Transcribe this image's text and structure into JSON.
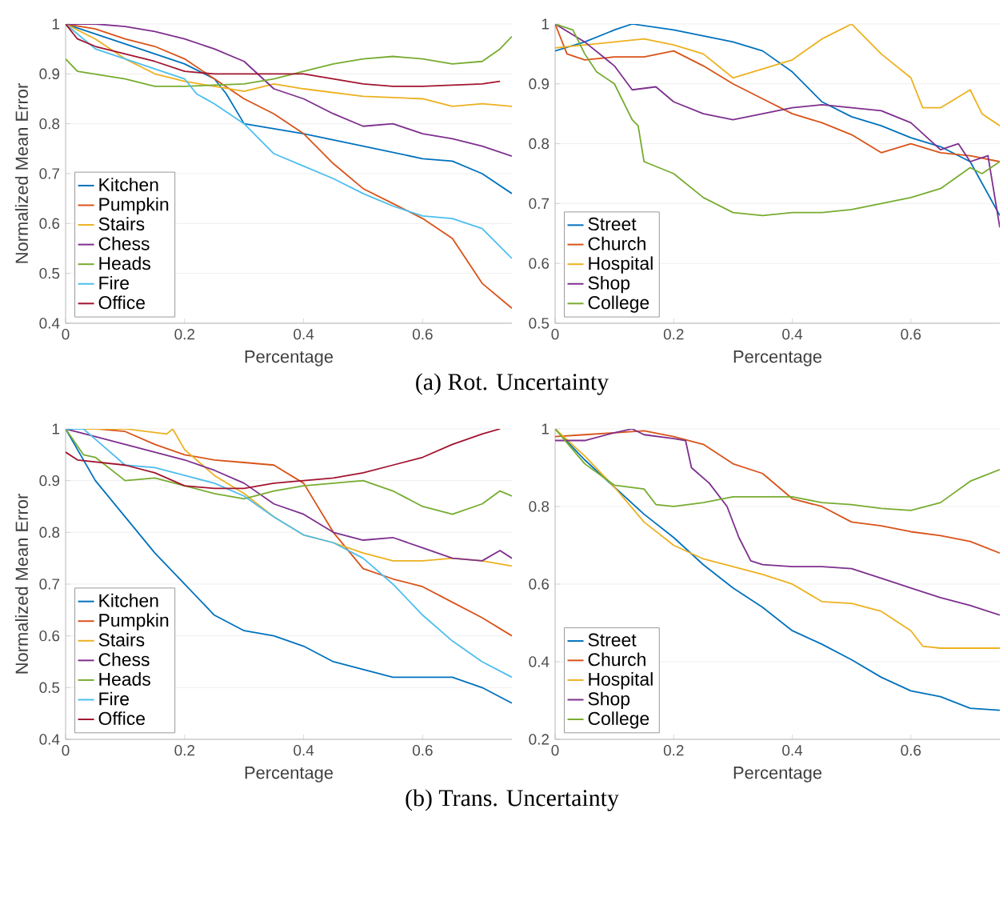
{
  "chart_data": [
    {
      "type": "line",
      "ylabel": "Normalized Mean Error",
      "xlabel": "Percentage",
      "annotations": [
        "(a) Rot. Uncertainty"
      ],
      "xlim": [
        0,
        0.75
      ],
      "ylim": [
        0.4,
        1
      ],
      "xticks": [
        0,
        0.2,
        0.4,
        0.6
      ],
      "yticks": [
        0.4,
        0.5,
        0.6,
        0.7,
        0.8,
        0.9,
        1
      ],
      "grid": "y",
      "legend": "bottom left",
      "series": [
        {
          "name": "Kitchen",
          "color": "#0072bd",
          "x": [
            0,
            0.1,
            0.2,
            0.25,
            0.27,
            0.3,
            0.35,
            0.4,
            0.5,
            0.6,
            0.65,
            0.7,
            0.75
          ],
          "values": [
            1,
            0.96,
            0.92,
            0.89,
            0.86,
            0.8,
            0.79,
            0.78,
            0.755,
            0.73,
            0.725,
            0.7,
            0.66
          ]
        },
        {
          "name": "Pumpkin",
          "color": "#d95319",
          "x": [
            0,
            0.05,
            0.1,
            0.15,
            0.2,
            0.25,
            0.3,
            0.35,
            0.4,
            0.45,
            0.5,
            0.55,
            0.6,
            0.65,
            0.7,
            0.75
          ],
          "values": [
            1,
            0.99,
            0.97,
            0.955,
            0.93,
            0.89,
            0.85,
            0.82,
            0.78,
            0.72,
            0.67,
            0.64,
            0.61,
            0.57,
            0.48,
            0.43
          ]
        },
        {
          "name": "Stairs",
          "color": "#edb120",
          "x": [
            0,
            0.05,
            0.1,
            0.15,
            0.2,
            0.25,
            0.3,
            0.35,
            0.4,
            0.5,
            0.6,
            0.65,
            0.7,
            0.75
          ],
          "values": [
            1,
            0.97,
            0.93,
            0.9,
            0.885,
            0.875,
            0.865,
            0.88,
            0.87,
            0.855,
            0.85,
            0.835,
            0.84,
            0.835
          ]
        },
        {
          "name": "Chess",
          "color": "#7e2f8e",
          "x": [
            0,
            0.05,
            0.1,
            0.15,
            0.2,
            0.25,
            0.3,
            0.35,
            0.4,
            0.45,
            0.5,
            0.55,
            0.6,
            0.65,
            0.7,
            0.75
          ],
          "values": [
            1,
            1,
            0.995,
            0.985,
            0.97,
            0.95,
            0.925,
            0.87,
            0.85,
            0.82,
            0.795,
            0.8,
            0.78,
            0.77,
            0.755,
            0.735
          ]
        },
        {
          "name": "Heads",
          "color": "#77ac30",
          "x": [
            0,
            0.02,
            0.1,
            0.15,
            0.2,
            0.3,
            0.35,
            0.4,
            0.45,
            0.5,
            0.55,
            0.6,
            0.65,
            0.7,
            0.73,
            0.75
          ],
          "values": [
            0.93,
            0.905,
            0.89,
            0.875,
            0.875,
            0.88,
            0.89,
            0.905,
            0.92,
            0.93,
            0.935,
            0.93,
            0.92,
            0.925,
            0.95,
            0.975
          ]
        },
        {
          "name": "Fire",
          "color": "#4dbeee",
          "x": [
            0,
            0.05,
            0.1,
            0.15,
            0.2,
            0.22,
            0.25,
            0.3,
            0.35,
            0.4,
            0.45,
            0.5,
            0.55,
            0.6,
            0.65,
            0.7,
            0.75
          ],
          "values": [
            1,
            0.95,
            0.93,
            0.91,
            0.89,
            0.86,
            0.84,
            0.8,
            0.74,
            0.715,
            0.69,
            0.66,
            0.635,
            0.615,
            0.61,
            0.59,
            0.53
          ]
        },
        {
          "name": "Office",
          "color": "#a2142f",
          "x": [
            0,
            0.02,
            0.05,
            0.1,
            0.15,
            0.2,
            0.25,
            0.3,
            0.4,
            0.45,
            0.5,
            0.55,
            0.6,
            0.7,
            0.73
          ],
          "values": [
            1,
            0.97,
            0.955,
            0.94,
            0.925,
            0.905,
            0.9,
            0.9,
            0.9,
            0.89,
            0.88,
            0.875,
            0.875,
            0.88,
            0.885
          ]
        }
      ]
    },
    {
      "type": "line",
      "xlabel": "Percentage",
      "xlim": [
        0,
        0.75
      ],
      "ylim": [
        0.5,
        1
      ],
      "xticks": [
        0,
        0.2,
        0.4,
        0.6
      ],
      "yticks": [
        0.5,
        0.6,
        0.7,
        0.8,
        0.9,
        1
      ],
      "grid": "y",
      "legend": "bottom left",
      "series": [
        {
          "name": "Street",
          "color": "#0072bd",
          "x": [
            0,
            0.05,
            0.1,
            0.13,
            0.2,
            0.25,
            0.3,
            0.35,
            0.4,
            0.45,
            0.5,
            0.55,
            0.6,
            0.65,
            0.7,
            0.75
          ],
          "values": [
            0.955,
            0.97,
            0.99,
            1,
            0.99,
            0.98,
            0.97,
            0.955,
            0.92,
            0.87,
            0.845,
            0.83,
            0.81,
            0.795,
            0.77,
            0.68
          ]
        },
        {
          "name": "Church",
          "color": "#d95319",
          "x": [
            0,
            0.02,
            0.05,
            0.1,
            0.15,
            0.2,
            0.25,
            0.3,
            0.35,
            0.4,
            0.45,
            0.5,
            0.55,
            0.6,
            0.65,
            0.7,
            0.75
          ],
          "values": [
            1,
            0.95,
            0.94,
            0.945,
            0.945,
            0.955,
            0.93,
            0.9,
            0.875,
            0.85,
            0.835,
            0.815,
            0.785,
            0.8,
            0.785,
            0.78,
            0.77
          ]
        },
        {
          "name": "Hospital",
          "color": "#edb120",
          "x": [
            0,
            0.05,
            0.1,
            0.15,
            0.2,
            0.25,
            0.3,
            0.35,
            0.4,
            0.45,
            0.5,
            0.52,
            0.55,
            0.6,
            0.62,
            0.65,
            0.7,
            0.72,
            0.75
          ],
          "values": [
            0.96,
            0.965,
            0.97,
            0.975,
            0.965,
            0.95,
            0.91,
            0.925,
            0.94,
            0.975,
            1,
            0.98,
            0.95,
            0.91,
            0.86,
            0.86,
            0.89,
            0.85,
            0.83
          ]
        },
        {
          "name": "Shop",
          "color": "#7e2f8e",
          "x": [
            0,
            0.05,
            0.1,
            0.13,
            0.17,
            0.2,
            0.25,
            0.3,
            0.35,
            0.4,
            0.45,
            0.5,
            0.55,
            0.6,
            0.65,
            0.68,
            0.7,
            0.73,
            0.75
          ],
          "values": [
            1,
            0.97,
            0.93,
            0.89,
            0.895,
            0.87,
            0.85,
            0.84,
            0.85,
            0.86,
            0.865,
            0.86,
            0.855,
            0.835,
            0.79,
            0.8,
            0.77,
            0.78,
            0.66
          ]
        },
        {
          "name": "College",
          "color": "#77ac30",
          "x": [
            0,
            0.03,
            0.05,
            0.07,
            0.1,
            0.13,
            0.14,
            0.15,
            0.2,
            0.25,
            0.3,
            0.35,
            0.4,
            0.45,
            0.5,
            0.55,
            0.6,
            0.65,
            0.7,
            0.72,
            0.75
          ],
          "values": [
            1,
            0.99,
            0.95,
            0.92,
            0.9,
            0.84,
            0.83,
            0.77,
            0.75,
            0.71,
            0.685,
            0.68,
            0.685,
            0.685,
            0.69,
            0.7,
            0.71,
            0.725,
            0.76,
            0.75,
            0.77
          ]
        }
      ]
    },
    {
      "type": "line",
      "ylabel": "Normalized Mean Error",
      "xlabel": "Percentage",
      "annotations": [
        "(b) Trans. Uncertainty"
      ],
      "xlim": [
        0,
        0.75
      ],
      "ylim": [
        0.4,
        1
      ],
      "xticks": [
        0,
        0.2,
        0.4,
        0.6
      ],
      "yticks": [
        0.4,
        0.5,
        0.6,
        0.7,
        0.8,
        0.9,
        1
      ],
      "grid": "y",
      "legend": "bottom left",
      "series": [
        {
          "name": "Kitchen",
          "color": "#0072bd",
          "x": [
            0,
            0.05,
            0.1,
            0.15,
            0.2,
            0.25,
            0.3,
            0.35,
            0.4,
            0.45,
            0.5,
            0.55,
            0.6,
            0.65,
            0.7,
            0.75
          ],
          "values": [
            1,
            0.9,
            0.83,
            0.76,
            0.7,
            0.64,
            0.61,
            0.6,
            0.58,
            0.55,
            0.535,
            0.52,
            0.52,
            0.52,
            0.5,
            0.47
          ]
        },
        {
          "name": "Pumpkin",
          "color": "#d95319",
          "x": [
            0,
            0.05,
            0.1,
            0.15,
            0.2,
            0.25,
            0.3,
            0.35,
            0.4,
            0.45,
            0.5,
            0.55,
            0.6,
            0.65,
            0.7,
            0.75
          ],
          "values": [
            1,
            1,
            0.995,
            0.97,
            0.95,
            0.94,
            0.935,
            0.93,
            0.895,
            0.8,
            0.73,
            0.71,
            0.695,
            0.665,
            0.635,
            0.6
          ]
        },
        {
          "name": "Stairs",
          "color": "#edb120",
          "x": [
            0,
            0.1,
            0.17,
            0.18,
            0.2,
            0.25,
            0.3,
            0.35,
            0.4,
            0.45,
            0.5,
            0.55,
            0.6,
            0.65,
            0.7,
            0.75
          ],
          "values": [
            1,
            1,
            0.99,
            1,
            0.96,
            0.91,
            0.875,
            0.83,
            0.795,
            0.78,
            0.76,
            0.745,
            0.745,
            0.75,
            0.745,
            0.735
          ]
        },
        {
          "name": "Chess",
          "color": "#7e2f8e",
          "x": [
            0,
            0.05,
            0.1,
            0.15,
            0.2,
            0.25,
            0.3,
            0.35,
            0.4,
            0.45,
            0.5,
            0.55,
            0.6,
            0.65,
            0.7,
            0.73,
            0.75
          ],
          "values": [
            1,
            0.985,
            0.97,
            0.955,
            0.94,
            0.92,
            0.895,
            0.855,
            0.835,
            0.8,
            0.785,
            0.79,
            0.77,
            0.75,
            0.745,
            0.765,
            0.75
          ]
        },
        {
          "name": "Heads",
          "color": "#77ac30",
          "x": [
            0,
            0.03,
            0.05,
            0.1,
            0.15,
            0.2,
            0.25,
            0.3,
            0.35,
            0.4,
            0.45,
            0.5,
            0.55,
            0.6,
            0.65,
            0.7,
            0.73,
            0.75
          ],
          "values": [
            1,
            0.95,
            0.945,
            0.9,
            0.905,
            0.89,
            0.875,
            0.865,
            0.88,
            0.89,
            0.895,
            0.9,
            0.88,
            0.85,
            0.835,
            0.855,
            0.88,
            0.87
          ]
        },
        {
          "name": "Fire",
          "color": "#4dbeee",
          "x": [
            0,
            0.03,
            0.05,
            0.1,
            0.15,
            0.2,
            0.25,
            0.3,
            0.35,
            0.4,
            0.45,
            0.5,
            0.55,
            0.6,
            0.65,
            0.7,
            0.75
          ],
          "values": [
            1,
            1,
            0.98,
            0.93,
            0.925,
            0.91,
            0.895,
            0.87,
            0.83,
            0.795,
            0.78,
            0.75,
            0.7,
            0.64,
            0.59,
            0.55,
            0.52
          ]
        },
        {
          "name": "Office",
          "color": "#a2142f",
          "x": [
            0,
            0.02,
            0.1,
            0.15,
            0.2,
            0.25,
            0.3,
            0.35,
            0.4,
            0.45,
            0.5,
            0.55,
            0.6,
            0.65,
            0.7,
            0.73
          ],
          "values": [
            0.955,
            0.94,
            0.93,
            0.915,
            0.89,
            0.885,
            0.885,
            0.895,
            0.9,
            0.905,
            0.915,
            0.93,
            0.945,
            0.97,
            0.99,
            1
          ]
        }
      ]
    },
    {
      "type": "line",
      "xlabel": "Percentage",
      "xlim": [
        0,
        0.75
      ],
      "ylim": [
        0.2,
        1
      ],
      "xticks": [
        0,
        0.2,
        0.4,
        0.6
      ],
      "yticks": [
        0.2,
        0.4,
        0.6,
        0.8,
        1
      ],
      "grid": "y",
      "legend": "bottom left",
      "series": [
        {
          "name": "Street",
          "color": "#0072bd",
          "x": [
            0,
            0.05,
            0.1,
            0.15,
            0.2,
            0.25,
            0.3,
            0.35,
            0.4,
            0.45,
            0.5,
            0.55,
            0.6,
            0.65,
            0.7,
            0.75
          ],
          "values": [
            1,
            0.92,
            0.85,
            0.78,
            0.72,
            0.65,
            0.59,
            0.54,
            0.48,
            0.445,
            0.405,
            0.36,
            0.325,
            0.31,
            0.28,
            0.275
          ]
        },
        {
          "name": "Church",
          "color": "#d95319",
          "x": [
            0,
            0.05,
            0.1,
            0.15,
            0.2,
            0.25,
            0.3,
            0.35,
            0.4,
            0.45,
            0.5,
            0.55,
            0.6,
            0.65,
            0.7,
            0.75
          ],
          "values": [
            0.98,
            0.985,
            0.99,
            0.995,
            0.98,
            0.96,
            0.91,
            0.885,
            0.82,
            0.8,
            0.76,
            0.75,
            0.735,
            0.725,
            0.71,
            0.68
          ]
        },
        {
          "name": "Hospital",
          "color": "#edb120",
          "x": [
            0,
            0.05,
            0.1,
            0.15,
            0.2,
            0.25,
            0.3,
            0.35,
            0.4,
            0.45,
            0.5,
            0.55,
            0.6,
            0.62,
            0.65,
            0.7,
            0.75
          ],
          "values": [
            1,
            0.93,
            0.85,
            0.76,
            0.7,
            0.665,
            0.645,
            0.625,
            0.6,
            0.555,
            0.55,
            0.53,
            0.48,
            0.44,
            0.435,
            0.435,
            0.435
          ]
        },
        {
          "name": "Shop",
          "color": "#7e2f8e",
          "x": [
            0,
            0.05,
            0.1,
            0.13,
            0.15,
            0.2,
            0.22,
            0.23,
            0.26,
            0.29,
            0.31,
            0.33,
            0.35,
            0.4,
            0.45,
            0.5,
            0.55,
            0.6,
            0.65,
            0.7,
            0.75
          ],
          "values": [
            0.97,
            0.97,
            0.99,
            1,
            0.985,
            0.975,
            0.97,
            0.9,
            0.86,
            0.8,
            0.72,
            0.66,
            0.65,
            0.645,
            0.645,
            0.64,
            0.615,
            0.59,
            0.565,
            0.545,
            0.52
          ]
        },
        {
          "name": "College",
          "color": "#77ac30",
          "x": [
            0,
            0.05,
            0.1,
            0.15,
            0.17,
            0.2,
            0.25,
            0.3,
            0.35,
            0.4,
            0.45,
            0.5,
            0.55,
            0.6,
            0.65,
            0.7,
            0.75
          ],
          "values": [
            1,
            0.91,
            0.855,
            0.845,
            0.805,
            0.8,
            0.81,
            0.825,
            0.825,
            0.825,
            0.81,
            0.805,
            0.795,
            0.79,
            0.81,
            0.865,
            0.895
          ]
        }
      ]
    }
  ]
}
